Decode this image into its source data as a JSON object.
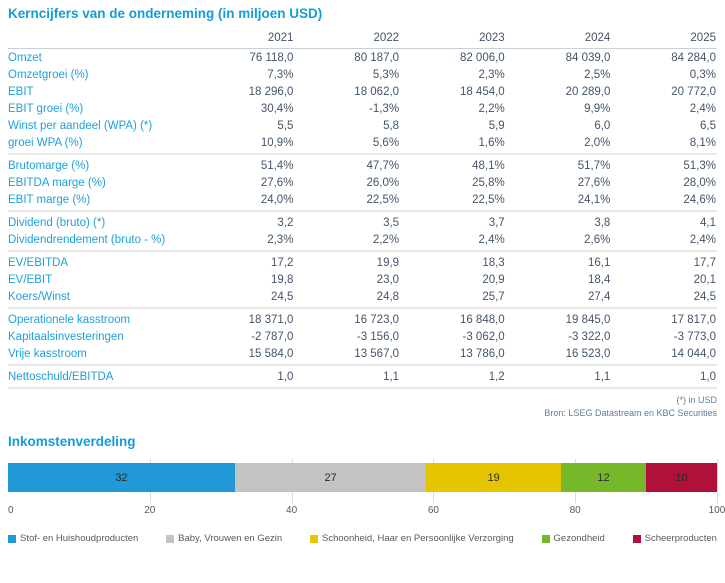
{
  "table": {
    "title": "Kerncijfers van de onderneming (in miljoen USD)",
    "years": [
      "2021",
      "2022",
      "2023",
      "2024",
      "2025"
    ],
    "sections": [
      {
        "rows": [
          {
            "label": "Omzet",
            "values": [
              "76 118,0",
              "80 187,0",
              "82 006,0",
              "84 039,0",
              "84 284,0"
            ]
          },
          {
            "label": "Omzetgroei (%)",
            "values": [
              "7,3%",
              "5,3%",
              "2,3%",
              "2,5%",
              "0,3%"
            ]
          },
          {
            "label": "EBIT",
            "values": [
              "18 296,0",
              "18 062,0",
              "18 454,0",
              "20 289,0",
              "20 772,0"
            ]
          },
          {
            "label": "EBIT groei (%)",
            "values": [
              "30,4%",
              "-1,3%",
              "2,2%",
              "9,9%",
              "2,4%"
            ]
          },
          {
            "label": "Winst per aandeel (WPA) (*)",
            "values": [
              "5,5",
              "5,8",
              "5,9",
              "6,0",
              "6,5"
            ]
          },
          {
            "label": "groei WPA (%)",
            "values": [
              "10,9%",
              "5,6%",
              "1,6%",
              "2,0%",
              "8,1%"
            ]
          }
        ]
      },
      {
        "rows": [
          {
            "label": "Brutomarge (%)",
            "values": [
              "51,4%",
              "47,7%",
              "48,1%",
              "51,7%",
              "51,3%"
            ]
          },
          {
            "label": "EBITDA marge (%)",
            "values": [
              "27,6%",
              "26,0%",
              "25,8%",
              "27,6%",
              "28,0%"
            ]
          },
          {
            "label": "EBIT marge (%)",
            "values": [
              "24,0%",
              "22,5%",
              "22,5%",
              "24,1%",
              "24,6%"
            ]
          }
        ]
      },
      {
        "rows": [
          {
            "label": "Dividend (bruto) (*)",
            "values": [
              "3,2",
              "3,5",
              "3,7",
              "3,8",
              "4,1"
            ]
          },
          {
            "label": "Dividendrendement (bruto - %)",
            "values": [
              "2,3%",
              "2,2%",
              "2,4%",
              "2,6%",
              "2,4%"
            ]
          }
        ]
      },
      {
        "rows": [
          {
            "label": "EV/EBITDA",
            "values": [
              "17,2",
              "19,9",
              "18,3",
              "16,1",
              "17,7"
            ]
          },
          {
            "label": "EV/EBIT",
            "values": [
              "19,8",
              "23,0",
              "20,9",
              "18,4",
              "20,1"
            ]
          },
          {
            "label": "Koers/Winst",
            "values": [
              "24,5",
              "24,8",
              "25,7",
              "27,4",
              "24,5"
            ]
          }
        ]
      },
      {
        "rows": [
          {
            "label": "Operationele kasstroom",
            "values": [
              "18 371,0",
              "16 723,0",
              "16 848,0",
              "19 845,0",
              "17 817,0"
            ]
          },
          {
            "label": "Kapitaalsinvesteringen",
            "values": [
              "-2 787,0",
              "-3 156,0",
              "-3 062,0",
              "-3 322,0",
              "-3 773,0"
            ]
          },
          {
            "label": "Vrije kasstroom",
            "values": [
              "15 584,0",
              "13 567,0",
              "13 786,0",
              "16 523,0",
              "14 044,0"
            ]
          }
        ]
      },
      {
        "rows": [
          {
            "label": "Nettoschuld/EBITDA",
            "values": [
              "1,0",
              "1,1",
              "1,2",
              "1,1",
              "1,0"
            ]
          }
        ]
      }
    ],
    "footnote": "(*) in USD",
    "source": "Bron: LSEG Datastream en KBC Securities"
  },
  "colors": {
    "accent_blue": "#149CD8",
    "label_blue": "#1FA0DB",
    "value_slate": "#44546A",
    "band_gray": "#E9E9E9",
    "footnote_blue_gray": "#5E7C9D"
  },
  "chart_data": {
    "type": "bar",
    "orientation": "horizontal-stacked",
    "title": "Inkomstenverdeling",
    "segments": [
      {
        "label": "Stof- en Huishoudproducten",
        "value": 32,
        "color": "#2099D6"
      },
      {
        "label": "Baby, Vrouwen en Gezin",
        "value": 27,
        "color": "#C3C3C3"
      },
      {
        "label": "Schoonheid, Haar en Persoonlijke Verzorging",
        "value": 19,
        "color": "#E5C400"
      },
      {
        "label": "Gezondheid",
        "value": 12,
        "color": "#77B82A"
      },
      {
        "label": "Scheerproducten",
        "value": 10,
        "color": "#B01039"
      }
    ],
    "xlim": [
      0,
      100
    ],
    "xticks": [
      0,
      20,
      40,
      60,
      80,
      100
    ],
    "grid": true,
    "legend_position": "bottom",
    "value_labels": "inside-center"
  }
}
